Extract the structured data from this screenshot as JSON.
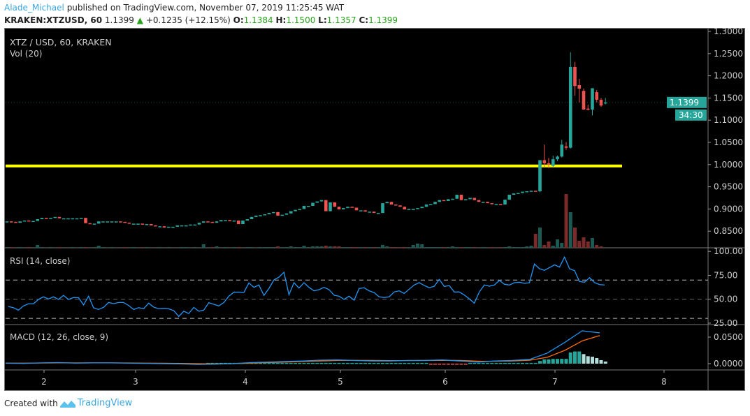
{
  "header": {
    "author": "Alade_Michael",
    "published": "published on TradingView.com, November 07, 2019 11:25:45 WAT",
    "symbol": "KRAKEN:XTZUSD, 60",
    "last": "1.1399",
    "change": "+0.1235 (+12.15%)",
    "o_label": "O:",
    "o": "1.1384",
    "h_label": "H:",
    "h": "1.1500",
    "l_label": "L:",
    "l": "1.1357",
    "c_label": "C:",
    "c": "1.1399"
  },
  "panes": {
    "main_title": "XTZ / USD, 60, KRAKEN",
    "volume_title": "Vol (20)",
    "rsi_title": "RSI (14, close)",
    "macd_title": "MACD (12, 26, close, 9)"
  },
  "footer": {
    "created_with": "Created with",
    "brand": "TradingView"
  },
  "colors": {
    "up": "#26a69a",
    "down": "#ef5350",
    "vol_up": "#1a5a52",
    "vol_down": "#7a2a28",
    "hline": "#ffff00",
    "rsi": "#2196f3",
    "macd": "#2196f3",
    "signal": "#ff6d00",
    "price_tag": "#26a69a"
  },
  "chart_data": [
    {
      "type": "candlestick",
      "title": "XTZ / USD, 60, KRAKEN",
      "y_ticks": [
        "1.3000",
        "1.2500",
        "1.2000",
        "1.1500",
        "1.1000",
        "1.0500",
        "1.0000",
        "0.9500",
        "0.9000",
        "0.8500"
      ],
      "ylim": [
        0.82,
        1.3
      ],
      "x_ticks": [
        "2",
        "3",
        "4",
        "5",
        "6",
        "7",
        "8"
      ],
      "last_price_label": "1.1399",
      "countdown": "34:30",
      "horizontal_line": 0.997,
      "early_closes": [
        0.872,
        0.871,
        0.869,
        0.872,
        0.874,
        0.873,
        0.873,
        0.877,
        0.88,
        0.879,
        0.88,
        0.882,
        0.879,
        0.879,
        0.879,
        0.879,
        0.879,
        0.88,
        0.868,
        0.866,
        0.867,
        0.872,
        0.872,
        0.872,
        0.872,
        0.872,
        0.871,
        0.869,
        0.867,
        0.867,
        0.867,
        0.866,
        0.866,
        0.863,
        0.861,
        0.861,
        0.858,
        0.86,
        0.86,
        0.863,
        0.863,
        0.863,
        0.865,
        0.865,
        0.869,
        0.872,
        0.871,
        0.869,
        0.872,
        0.875,
        0.875,
        0.873,
        0.874,
        0.866,
        0.874,
        0.877,
        0.882,
        0.885,
        0.886,
        0.888,
        0.891,
        0.893,
        0.885,
        0.887,
        0.89,
        0.895,
        0.898,
        0.9,
        0.907,
        0.907,
        0.914,
        0.917,
        0.92,
        0.895,
        0.915,
        0.905,
        0.899,
        0.902,
        0.905,
        0.903,
        0.897,
        0.897,
        0.894,
        0.894,
        0.891,
        0.891,
        0.913,
        0.916,
        0.91,
        0.908,
        0.905,
        0.899,
        0.9,
        0.9,
        0.902,
        0.905,
        0.91,
        0.911,
        0.916,
        0.92,
        0.918,
        0.922,
        0.923,
        0.932,
        0.92,
        0.922,
        0.925,
        0.92,
        0.916,
        0.916,
        0.913,
        0.911,
        0.911,
        0.91,
        0.921,
        0.932,
        0.935,
        0.936,
        0.939,
        0.94,
        0.941,
        0.94
      ],
      "late_ohlc": [
        [
          0.94,
          1.01,
          0.938,
          1.01
        ],
        [
          1.01,
          1.045,
          0.995,
          1.003
        ],
        [
          1.003,
          1.015,
          0.992,
          1.001
        ],
        [
          0.997,
          1.02,
          0.995,
          1.012
        ],
        [
          1.012,
          1.02,
          1.008,
          1.018
        ],
        [
          1.018,
          1.056,
          1.016,
          1.045
        ],
        [
          1.041,
          1.051,
          1.033,
          1.038
        ],
        [
          1.038,
          1.253,
          1.036,
          1.22
        ],
        [
          1.22,
          1.231,
          1.155,
          1.177
        ],
        [
          1.179,
          1.193,
          1.14,
          1.171
        ],
        [
          1.166,
          1.171,
          1.124,
          1.124
        ],
        [
          1.126,
          1.135,
          1.122,
          1.124
        ],
        [
          1.124,
          1.172,
          1.111,
          1.172
        ],
        [
          1.163,
          1.168,
          1.14,
          1.146
        ],
        [
          1.146,
          1.15,
          1.13,
          1.133
        ],
        [
          1.1384,
          1.15,
          1.1357,
          1.1399
        ]
      ],
      "volume_relative": [
        1,
        1,
        0,
        1,
        0,
        1,
        0,
        4,
        1,
        0,
        1,
        0,
        1,
        0,
        0,
        1,
        0,
        1,
        1,
        0,
        1,
        3,
        1,
        0,
        1,
        0,
        0,
        1,
        0,
        1,
        0,
        1,
        1,
        0,
        0,
        1,
        0,
        1,
        0,
        0,
        1,
        1,
        0,
        1,
        0,
        5,
        0,
        1,
        2,
        0,
        1,
        0,
        1,
        1,
        0,
        1,
        1,
        0,
        1,
        1,
        1,
        1,
        2,
        1,
        1,
        2,
        1,
        1,
        3,
        1,
        2,
        2,
        2,
        3,
        2,
        2,
        2,
        1,
        1,
        1,
        1,
        1,
        1,
        1,
        1,
        1,
        4,
        2,
        1,
        1,
        1,
        1,
        1,
        4,
        6,
        5,
        1,
        1,
        1,
        1,
        1,
        1,
        2,
        1,
        1,
        1,
        1,
        1,
        0,
        1,
        0,
        1,
        0,
        1,
        1,
        2,
        1,
        1,
        1,
        2,
        3,
        20,
        29,
        4,
        9,
        3,
        12,
        7,
        77,
        51,
        29,
        10,
        15,
        9,
        14,
        4,
        2
      ]
    },
    {
      "type": "line",
      "title": "RSI (14, close)",
      "y_ticks": [
        "100.00",
        "75.00",
        "50.00",
        "25.00"
      ],
      "bands": [
        70,
        50,
        30
      ],
      "values": [
        42.3,
        41.2,
        38.6,
        43,
        45.2,
        45.2,
        49.8,
        52.5,
        50.3,
        52.5,
        49.8,
        54,
        49.8,
        51.8,
        51.6,
        44,
        53.2,
        41,
        39.3,
        41.5,
        46.6,
        45.4,
        46.6,
        46.6,
        43.4,
        39.3,
        41.2,
        40,
        45.9,
        41.8,
        40,
        40.5,
        40,
        38.1,
        32,
        37.4,
        35,
        41.5,
        37.4,
        38.6,
        46.4,
        44.7,
        43,
        46.6,
        53.2,
        57.3,
        57.5,
        57,
        67.1,
        62.4,
        64.9,
        54,
        61.2,
        70.2,
        73.1,
        78.2,
        54.7,
        67.3,
        61.7,
        67.3,
        62.4,
        58.8,
        60,
        62.4,
        60,
        54.2,
        53.2,
        49.8,
        53.2,
        49,
        61.2,
        62,
        58.8,
        56.9,
        52.5,
        51.8,
        52.5,
        57.6,
        58.8,
        56.1,
        60.5,
        64.9,
        67.3,
        64.4,
        62,
        63.6,
        70.7,
        63.4,
        64.2,
        57.6,
        57.6,
        54.4,
        50.3,
        45.9,
        57.6,
        64.9,
        63.6,
        64.9,
        69.7,
        65.6,
        64.9,
        67.3,
        67.8,
        66.6,
        67.3,
        86.8,
        81.9,
        80.2,
        83.1,
        86,
        83.6,
        94.1,
        81.9,
        79.9,
        68.5,
        67.8,
        72.6,
        67.3,
        65.3,
        64.9
      ]
    },
    {
      "type": "line+bar",
      "title": "MACD (12, 26, close, 9)",
      "y_ticks": [
        "0.0500",
        "0.0000"
      ],
      "macd": [
        0.001,
        0.0005,
        0.0015,
        0.002,
        0.001,
        0.0015,
        0.0015,
        0.001,
        0.0005,
        0,
        -0.0005,
        -0.0015,
        -0.001,
        0,
        0.002,
        0.003,
        0.004,
        0.005,
        0.0065,
        0.007,
        0.006,
        0.005,
        0.005,
        0.006,
        0.006,
        0.007,
        0.005,
        0.003,
        0.005,
        0.006,
        0.008,
        0.02,
        0.04,
        0.062,
        0.058
      ],
      "signal": [
        0.001,
        0.001,
        0.0012,
        0.0015,
        0.0015,
        0.0015,
        0.0015,
        0.0013,
        0.001,
        0.0008,
        0.0005,
        0,
        -0.0003,
        0,
        0.001,
        0.002,
        0.003,
        0.004,
        0.005,
        0.006,
        0.0062,
        0.006,
        0.0058,
        0.0058,
        0.006,
        0.0062,
        0.006,
        0.0048,
        0.0045,
        0.005,
        0.0065,
        0.012,
        0.025,
        0.043,
        0.053
      ],
      "histogram_late": [
        0.005,
        0.008,
        0.008,
        0.009,
        0.009,
        0.009,
        0.009,
        0.021,
        0.023,
        0.023,
        0.018,
        0.014,
        0.013,
        0.0105,
        0.0066,
        0.004
      ],
      "histogram_early_level": 0.0015
    }
  ]
}
